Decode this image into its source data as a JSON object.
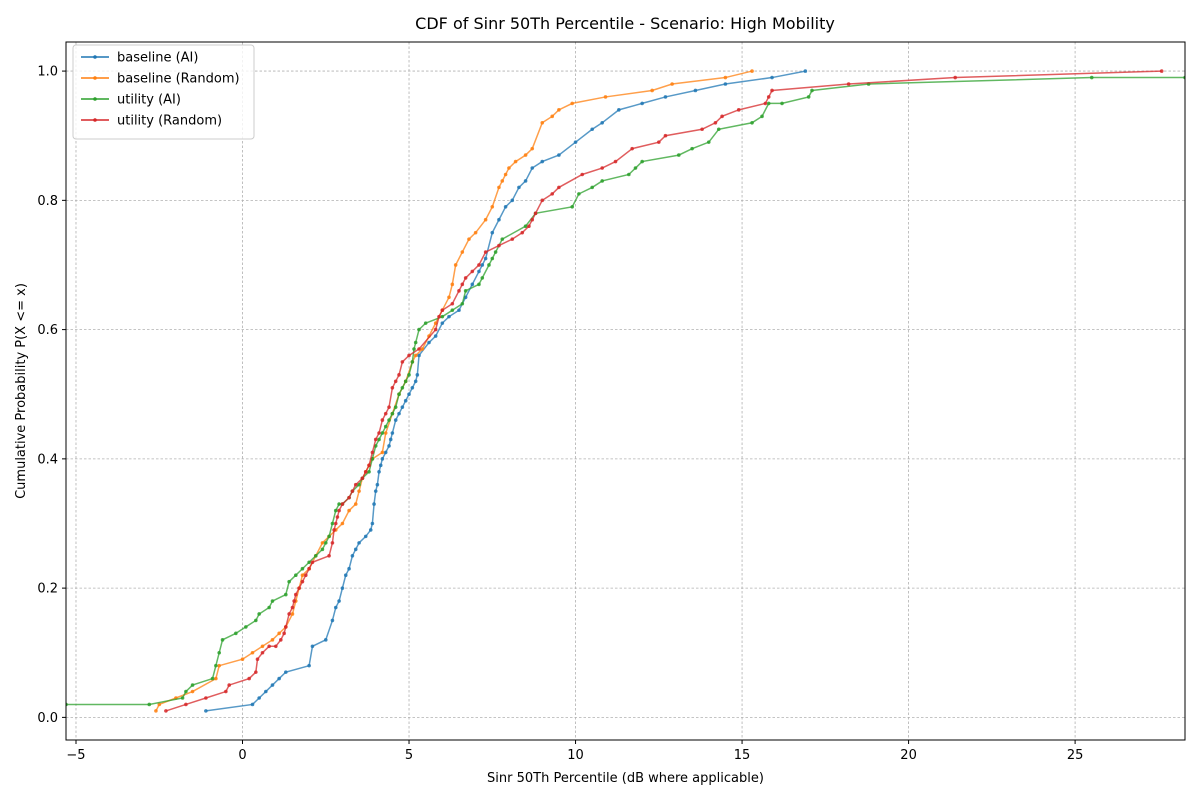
{
  "chart_data": {
    "type": "line",
    "title": "CDF of Sinr 50Th Percentile - Scenario: High Mobility",
    "xlabel": "Sinr 50Th Percentile (dB where applicable)",
    "ylabel": "Cumulative Probability P(X <= x)",
    "xlim": [
      -5.3,
      28.3
    ],
    "ylim": [
      -0.035,
      1.045
    ],
    "xticks": [
      -5,
      0,
      5,
      10,
      15,
      20,
      25
    ],
    "yticks": [
      0.0,
      0.2,
      0.4,
      0.6,
      0.8,
      1.0
    ],
    "xtick_labels": [
      "−5",
      "0",
      "5",
      "10",
      "15",
      "20",
      "25"
    ],
    "ytick_labels": [
      "0.0",
      "0.2",
      "0.4",
      "0.6",
      "0.8",
      "1.0"
    ],
    "grid": true,
    "legend_position": "top-left",
    "series": [
      {
        "name": "baseline (AI)",
        "color": "#1f77b4",
        "x": [
          -1.1,
          0.3,
          0.5,
          0.7,
          0.9,
          1.1,
          1.3,
          2.0,
          2.1,
          2.5,
          2.7,
          2.8,
          2.9,
          3.0,
          3.1,
          3.2,
          3.3,
          3.4,
          3.5,
          3.7,
          3.85,
          3.9,
          3.95,
          4.0,
          4.05,
          4.1,
          4.15,
          4.2,
          4.3,
          4.4,
          4.45,
          4.5,
          4.6,
          4.7,
          4.8,
          4.9,
          5.0,
          5.1,
          5.2,
          5.25,
          5.3,
          5.6,
          5.8,
          6.0,
          6.2,
          6.5,
          6.7,
          6.9,
          7.1,
          7.2,
          7.3,
          7.5,
          7.7,
          7.9,
          8.1,
          8.3,
          8.5,
          8.7,
          9.0,
          9.5,
          10.0,
          10.5,
          10.8,
          11.3,
          12.0,
          12.7,
          13.6,
          14.5,
          15.9,
          16.9
        ],
        "y": [
          0.01,
          0.02,
          0.03,
          0.04,
          0.05,
          0.06,
          0.07,
          0.08,
          0.11,
          0.12,
          0.15,
          0.17,
          0.18,
          0.2,
          0.22,
          0.23,
          0.25,
          0.26,
          0.27,
          0.28,
          0.29,
          0.3,
          0.33,
          0.35,
          0.36,
          0.38,
          0.39,
          0.4,
          0.41,
          0.42,
          0.43,
          0.44,
          0.46,
          0.47,
          0.48,
          0.49,
          0.5,
          0.51,
          0.52,
          0.53,
          0.56,
          0.58,
          0.59,
          0.61,
          0.62,
          0.63,
          0.65,
          0.67,
          0.69,
          0.7,
          0.71,
          0.75,
          0.77,
          0.79,
          0.8,
          0.82,
          0.83,
          0.85,
          0.86,
          0.87,
          0.89,
          0.91,
          0.92,
          0.94,
          0.95,
          0.96,
          0.97,
          0.98,
          0.99,
          1.0
        ]
      },
      {
        "name": "baseline (Random)",
        "color": "#ff7f0e",
        "x": [
          -2.6,
          -2.5,
          -2.0,
          -1.5,
          -0.8,
          -0.7,
          0.0,
          0.3,
          0.6,
          0.9,
          1.1,
          1.3,
          1.5,
          1.6,
          1.7,
          1.8,
          2.0,
          2.2,
          2.4,
          2.6,
          2.8,
          3.0,
          3.2,
          3.4,
          3.5,
          3.6,
          3.7,
          3.8,
          3.9,
          4.2,
          4.3,
          4.5,
          4.7,
          4.9,
          5.1,
          5.2,
          5.4,
          5.6,
          5.8,
          6.0,
          6.2,
          6.3,
          6.4,
          6.6,
          6.8,
          7.0,
          7.3,
          7.5,
          7.7,
          7.8,
          7.9,
          8.0,
          8.2,
          8.5,
          8.7,
          9.0,
          9.3,
          9.5,
          9.9,
          10.9,
          12.3,
          12.9,
          14.5,
          15.3
        ],
        "y": [
          0.01,
          0.02,
          0.03,
          0.04,
          0.06,
          0.08,
          0.09,
          0.1,
          0.11,
          0.12,
          0.13,
          0.14,
          0.16,
          0.18,
          0.2,
          0.22,
          0.23,
          0.25,
          0.27,
          0.28,
          0.29,
          0.3,
          0.32,
          0.33,
          0.35,
          0.37,
          0.38,
          0.39,
          0.4,
          0.41,
          0.44,
          0.47,
          0.5,
          0.52,
          0.55,
          0.56,
          0.57,
          0.59,
          0.61,
          0.63,
          0.65,
          0.67,
          0.7,
          0.72,
          0.74,
          0.75,
          0.77,
          0.79,
          0.82,
          0.83,
          0.84,
          0.85,
          0.86,
          0.87,
          0.88,
          0.92,
          0.93,
          0.94,
          0.95,
          0.96,
          0.97,
          0.98,
          0.99,
          1.0
        ]
      },
      {
        "name": "utility (AI)",
        "color": "#2ca02c",
        "x": [
          -5.3,
          -2.8,
          -1.8,
          -1.7,
          -1.5,
          -0.9,
          -0.8,
          -0.7,
          -0.6,
          -0.2,
          0.1,
          0.4,
          0.5,
          0.8,
          0.9,
          1.3,
          1.4,
          1.6,
          1.8,
          2.0,
          2.2,
          2.4,
          2.5,
          2.6,
          2.7,
          2.8,
          2.9,
          3.0,
          3.2,
          3.3,
          3.5,
          3.6,
          3.8,
          3.9,
          4.0,
          4.1,
          4.2,
          4.3,
          4.4,
          4.5,
          4.6,
          4.7,
          4.8,
          4.9,
          5.0,
          5.1,
          5.15,
          5.2,
          5.3,
          5.5,
          6.0,
          6.3,
          6.6,
          6.7,
          7.1,
          7.2,
          7.4,
          7.5,
          7.6,
          7.8,
          8.5,
          8.8,
          9.9,
          10.1,
          10.5,
          10.8,
          11.6,
          11.8,
          12.0,
          13.1,
          13.5,
          14.0,
          14.3,
          15.3,
          15.6,
          15.8,
          16.2,
          17.0,
          17.1,
          18.8,
          25.5,
          28.3
        ],
        "y": [
          0.02,
          0.02,
          0.03,
          0.04,
          0.05,
          0.06,
          0.08,
          0.1,
          0.12,
          0.13,
          0.14,
          0.15,
          0.16,
          0.17,
          0.18,
          0.19,
          0.21,
          0.22,
          0.23,
          0.24,
          0.25,
          0.26,
          0.27,
          0.28,
          0.3,
          0.32,
          0.33,
          0.33,
          0.34,
          0.35,
          0.36,
          0.37,
          0.38,
          0.4,
          0.42,
          0.43,
          0.44,
          0.45,
          0.46,
          0.47,
          0.48,
          0.5,
          0.51,
          0.52,
          0.53,
          0.55,
          0.57,
          0.58,
          0.6,
          0.61,
          0.62,
          0.63,
          0.64,
          0.66,
          0.67,
          0.68,
          0.7,
          0.71,
          0.72,
          0.74,
          0.76,
          0.78,
          0.79,
          0.81,
          0.82,
          0.83,
          0.84,
          0.85,
          0.86,
          0.87,
          0.88,
          0.89,
          0.91,
          0.92,
          0.93,
          0.95,
          0.95,
          0.96,
          0.97,
          0.98,
          0.99,
          0.99
        ]
      },
      {
        "name": "utility (Random)",
        "color": "#d62728",
        "x": [
          -2.3,
          -1.7,
          -1.1,
          -0.5,
          -0.4,
          0.2,
          0.4,
          0.45,
          0.6,
          0.8,
          1.0,
          1.15,
          1.25,
          1.3,
          1.4,
          1.5,
          1.55,
          1.6,
          1.7,
          1.8,
          1.9,
          2.0,
          2.1,
          2.6,
          2.7,
          2.75,
          2.8,
          2.85,
          2.9,
          3.0,
          3.2,
          3.3,
          3.4,
          3.6,
          3.7,
          3.8,
          3.9,
          4.0,
          4.1,
          4.2,
          4.3,
          4.4,
          4.5,
          4.6,
          4.7,
          4.8,
          5.0,
          5.3,
          5.8,
          5.9,
          6.0,
          6.3,
          6.5,
          6.6,
          6.7,
          6.9,
          7.1,
          7.3,
          7.7,
          8.1,
          8.4,
          8.6,
          8.7,
          8.8,
          9.0,
          9.3,
          9.5,
          10.2,
          10.8,
          11.2,
          11.7,
          12.5,
          12.7,
          13.8,
          14.2,
          14.4,
          14.9,
          15.7,
          15.8,
          15.9,
          18.2,
          21.4,
          27.6
        ],
        "y": [
          0.01,
          0.02,
          0.03,
          0.04,
          0.05,
          0.06,
          0.07,
          0.09,
          0.1,
          0.11,
          0.11,
          0.12,
          0.13,
          0.14,
          0.16,
          0.17,
          0.18,
          0.19,
          0.2,
          0.21,
          0.22,
          0.23,
          0.24,
          0.25,
          0.27,
          0.29,
          0.3,
          0.31,
          0.32,
          0.33,
          0.34,
          0.35,
          0.36,
          0.37,
          0.38,
          0.39,
          0.41,
          0.43,
          0.44,
          0.46,
          0.47,
          0.48,
          0.51,
          0.52,
          0.53,
          0.55,
          0.56,
          0.57,
          0.6,
          0.62,
          0.63,
          0.64,
          0.66,
          0.67,
          0.68,
          0.69,
          0.7,
          0.72,
          0.73,
          0.74,
          0.75,
          0.76,
          0.77,
          0.78,
          0.8,
          0.81,
          0.82,
          0.84,
          0.85,
          0.86,
          0.88,
          0.89,
          0.9,
          0.91,
          0.92,
          0.93,
          0.94,
          0.95,
          0.96,
          0.97,
          0.98,
          0.99,
          1.0
        ]
      }
    ]
  }
}
